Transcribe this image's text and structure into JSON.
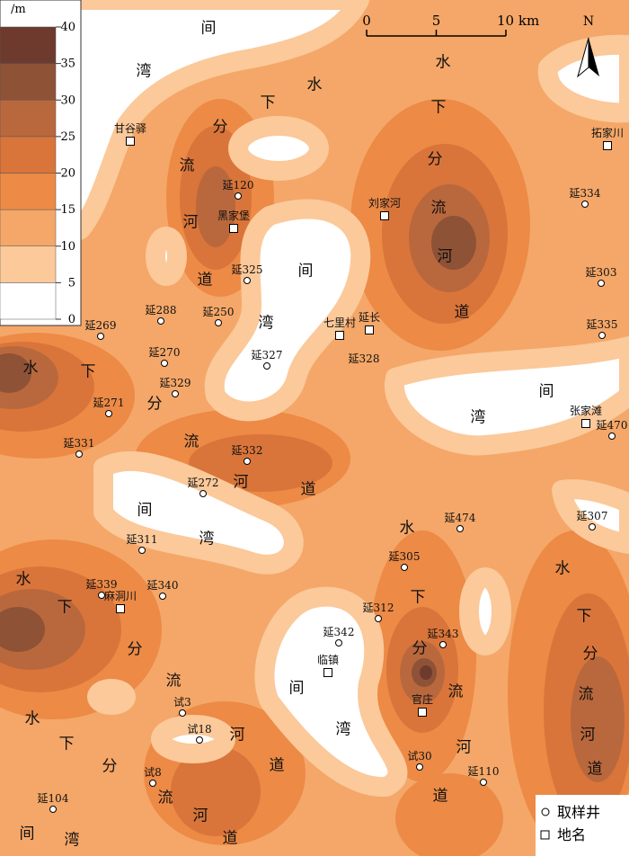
{
  "legend": {
    "unit": "/m",
    "ticks": [
      0,
      5,
      10,
      15,
      20,
      25,
      30,
      35,
      40
    ],
    "colors": [
      "#ffffff",
      "#fbc99a",
      "#f4a768",
      "#ec8a46",
      "#d9753a",
      "#b9683d",
      "#8e5236",
      "#6e3a2e"
    ]
  },
  "scale_bar": {
    "ticks": [
      0,
      5,
      {
        "value": 10,
        "label": "10 km"
      }
    ]
  },
  "north": "N",
  "labels": [
    "间",
    "湾",
    "水",
    "下",
    "分",
    "流",
    "河",
    "道",
    "水",
    "下",
    "分",
    "流",
    "河",
    "道",
    "间",
    "湾",
    "水",
    "下",
    "分",
    "流",
    "河",
    "道",
    "间",
    "湾",
    "间",
    "湾",
    "水",
    "下",
    "分",
    "流",
    "河",
    "道",
    "水",
    "下",
    "分",
    "流",
    "河",
    "道",
    "水",
    "下",
    "分",
    "流",
    "河",
    "道",
    "水",
    "下",
    "分",
    "流",
    "河",
    "道",
    "间",
    "湾",
    "间",
    "湾"
  ],
  "wells": [
    "延120",
    "延325",
    "延288",
    "延250",
    "延269",
    "延270",
    "延327",
    "延328",
    "延329",
    "延271",
    "延331",
    "延332",
    "延272",
    "延311",
    "延339",
    "延340",
    "延334",
    "延303",
    "延335",
    "延470",
    "延474",
    "延307",
    "延305",
    "延312",
    "延342",
    "延343",
    "试3",
    "试18",
    "试8",
    "试30",
    "延110",
    "延104"
  ],
  "towns": [
    "甘谷驿",
    "拓家川",
    "黑家堡",
    "刘家河",
    "七里村",
    "延长",
    "张家滩",
    "麻洞川",
    "临镇",
    "官庄"
  ],
  "key": {
    "well": "取样井",
    "town": "地名"
  }
}
